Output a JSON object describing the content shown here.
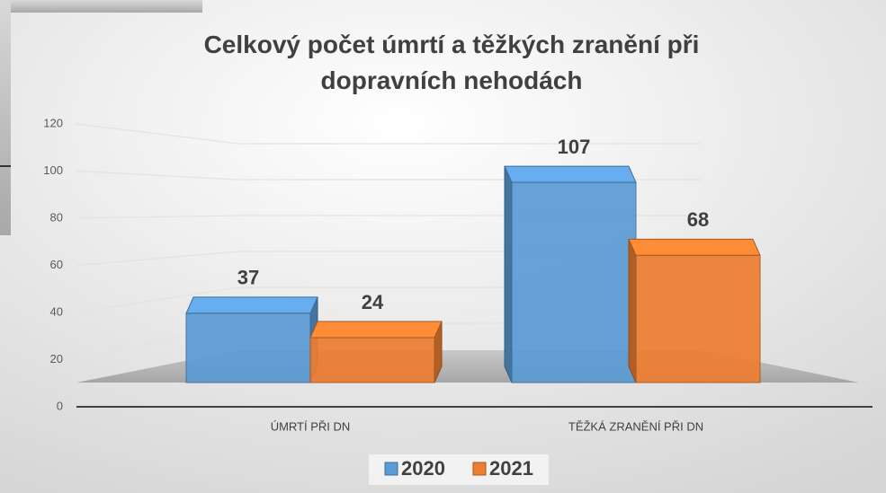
{
  "chart_data": {
    "type": "bar3d",
    "title": "Celkový počet úmrtí a těžkých zranění při dopravních nehodách",
    "categories": [
      "ÚMRTÍ PŘI DN",
      "TĚŽKÁ ZRANĚNÍ PŘI DN"
    ],
    "series": [
      {
        "name": "2020",
        "color": "#5b9bd5",
        "values": [
          37,
          107
        ]
      },
      {
        "name": "2021",
        "color": "#ed7d31",
        "values": [
          24,
          68
        ]
      }
    ],
    "ylim": [
      0,
      120
    ],
    "yticks": [
      0,
      20,
      40,
      60,
      80,
      100,
      120
    ],
    "grid": true,
    "legend": "bottom"
  }
}
